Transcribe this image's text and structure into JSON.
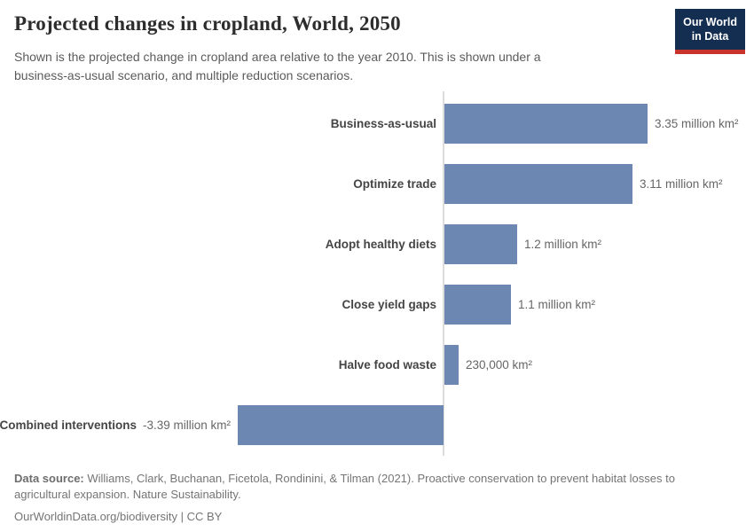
{
  "header": {
    "title": "Projected changes in cropland, World, 2050",
    "subtitle": "Shown is the projected change in cropland area relative to the year 2010. This is shown under a business-as-usual scenario, and multiple reduction scenarios.",
    "logo": {
      "line1": "Our World",
      "line2": "in Data"
    }
  },
  "chart_data": {
    "type": "bar",
    "orientation": "horizontal",
    "title": "Projected changes in cropland, World, 2050",
    "xlabel": "",
    "ylabel": "",
    "unit": "million km²",
    "baseline": 0,
    "xlim": [
      -3.5,
      3.5
    ],
    "grid": false,
    "legend": "none",
    "bar_color": "#6c87b1",
    "categories": [
      "Business-as-usual",
      "Optimize trade",
      "Adopt healthy diets",
      "Close yield gaps",
      "Halve food waste",
      "Combined interventions"
    ],
    "values": [
      3.35,
      3.11,
      1.2,
      1.1,
      0.23,
      -3.39
    ],
    "value_labels": [
      "3.35 million km²",
      "3.11 million km²",
      "1.2 million km²",
      "1.1 million km²",
      "230,000 km²",
      "-3.39 million km²"
    ]
  },
  "footer": {
    "source_label": "Data source:",
    "source_text": " Williams, Clark, Buchanan, Ficetola, Rondinini, & Tilman (2021). Proactive conservation to prevent habitat losses to agricultural expansion. Nature Sustainability.",
    "license": "OurWorldinData.org/biodiversity | CC BY"
  },
  "colors": {
    "bar": "#6c87b1",
    "logo_background": "#142e52",
    "logo_stripe": "#c8332b",
    "title_text": "#2d2d2d",
    "subtitle_text": "#5b5b5b",
    "category_label": "#454545",
    "value_label": "#666666",
    "footer_text": "#757575",
    "axis_line": "#dcdcdc"
  }
}
